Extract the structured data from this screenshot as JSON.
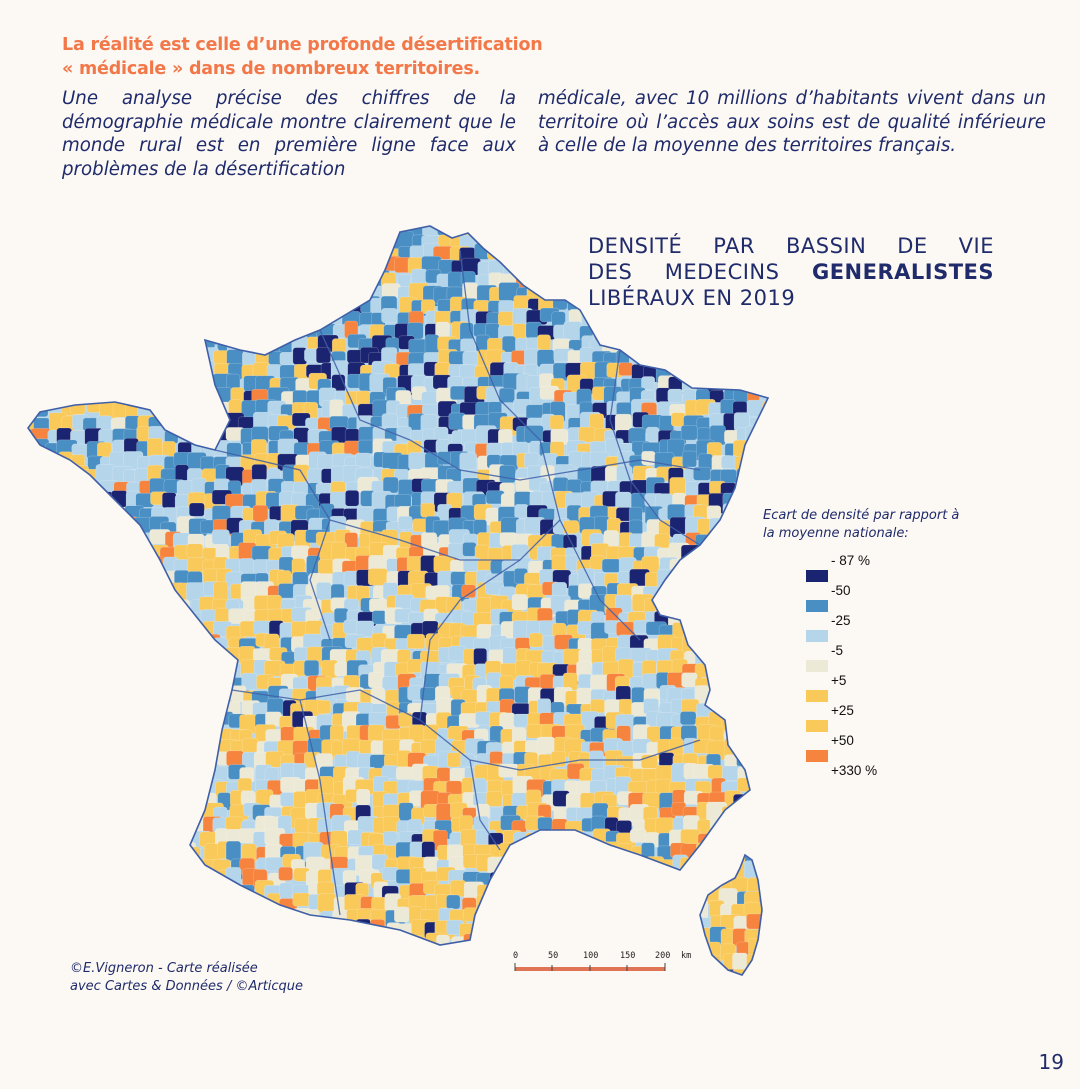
{
  "headline": {
    "line1": "La réalité  est celle d’une profonde désertification",
    "line2": "« médicale » dans de nombreux territoires."
  },
  "body": {
    "col1": "Une analyse précise des chiffres de la démographie médicale montre clairement que le monde rural est en première ligne face aux problèmes de la désertification",
    "col2": "médicale, avec 10 millions d’habitants vivent dans un territoire où l’accès aux soins est de qualité inférieure à celle de la moyenne des territoires français."
  },
  "map_title": {
    "line1_words": [
      "DENSITÉ",
      "PAR",
      "BASSIN",
      "DE",
      "VIE"
    ],
    "line2_prefix_words": [
      "DES",
      "MEDECINS"
    ],
    "line2_bold": "GENERALISTES",
    "line3": "LIBÉRAUX EN 2019"
  },
  "legend": {
    "title_line1": "Ecart de densité par rapport à",
    "title_line2": "la moyenne nationale:",
    "labels": [
      "- 87 %",
      "-50",
      "-25",
      "-5",
      "+5",
      "+25",
      "+50",
      "+330 %"
    ],
    "colors": [
      "#1b2470",
      "#4a8fc4",
      "#b5d5ea",
      "#ece9d6",
      "#f9c95a",
      "#f9c95a",
      "#f6843e"
    ]
  },
  "scale": {
    "ticks": [
      "0",
      "50",
      "100",
      "150",
      "200"
    ],
    "unit": "km",
    "color": "#e07555"
  },
  "credit": {
    "line1": "©E.Vigneron - Carte réalisée",
    "line2": "avec Cartes & Données / ©Articque"
  },
  "page_number": "19",
  "colors": {
    "headline": "#f2784a",
    "text": "#1f2b6b",
    "background": "#fcf8f3",
    "region_border": "#3f5fa8"
  }
}
